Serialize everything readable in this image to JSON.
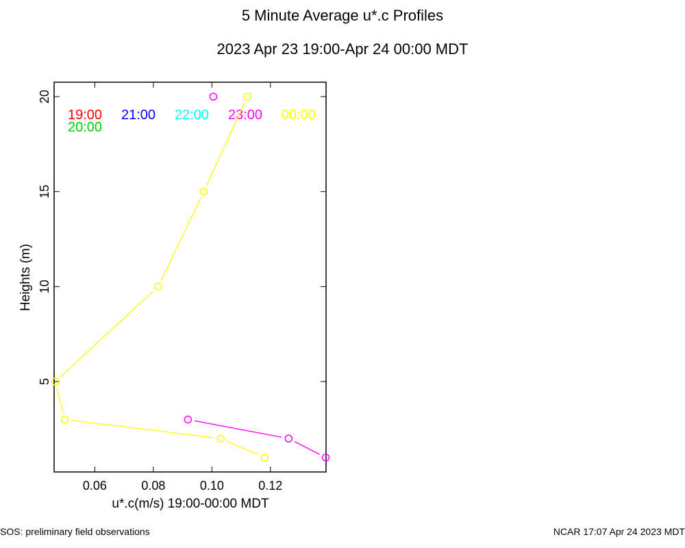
{
  "chart_data": {
    "type": "line",
    "title": "5 Minute Average u*.c Profiles",
    "subtitle": "2023 Apr 23 19:00-Apr 24 00:00 MDT",
    "xlabel": "u*.c(m/s) 19:00-00:00 MDT",
    "ylabel": "Heights (m)",
    "xlim": [
      0.0461,
      0.139
    ],
    "ylim": [
      0.24,
      20.76
    ],
    "xticks": [
      0.06,
      0.08,
      0.1,
      0.12
    ],
    "xtick_labels": [
      "0.06",
      "0.08",
      "0.10",
      "0.12"
    ],
    "yticks": [
      5,
      10,
      15,
      20
    ],
    "ytick_labels": [
      "5",
      "10",
      "15",
      "20"
    ],
    "grid": false,
    "legend": [
      {
        "label": "19:00",
        "color": "#ff0000"
      },
      {
        "label": "20:00",
        "color": "#00cc00"
      },
      {
        "label": "21:00",
        "color": "#0000ff"
      },
      {
        "label": "22:00",
        "color": "#00ffff"
      },
      {
        "label": "23:00",
        "color": "#ff00ff"
      },
      {
        "label": "00:00",
        "color": "#ffff00"
      }
    ],
    "series": [
      {
        "name": "23:00",
        "color": "#ff00ff",
        "segments": [
          [
            [
              0.1005,
              20
            ]
          ],
          [
            [
              0.0918,
              3
            ],
            [
              0.1262,
              2
            ],
            [
              0.1389,
              1
            ]
          ]
        ]
      },
      {
        "name": "00:00",
        "color": "#ffff00",
        "segments": [
          [
            [
              0.1122,
              20
            ],
            [
              0.0972,
              15
            ],
            [
              0.0817,
              10
            ],
            [
              0.0465,
              5
            ],
            [
              0.0497,
              3
            ],
            [
              0.103,
              2
            ],
            [
              0.118,
              1
            ]
          ]
        ]
      }
    ]
  },
  "footer": {
    "left": "SOS: preliminary field observations",
    "right": "NCAR 17:07 Apr 24 2023 MDT"
  }
}
